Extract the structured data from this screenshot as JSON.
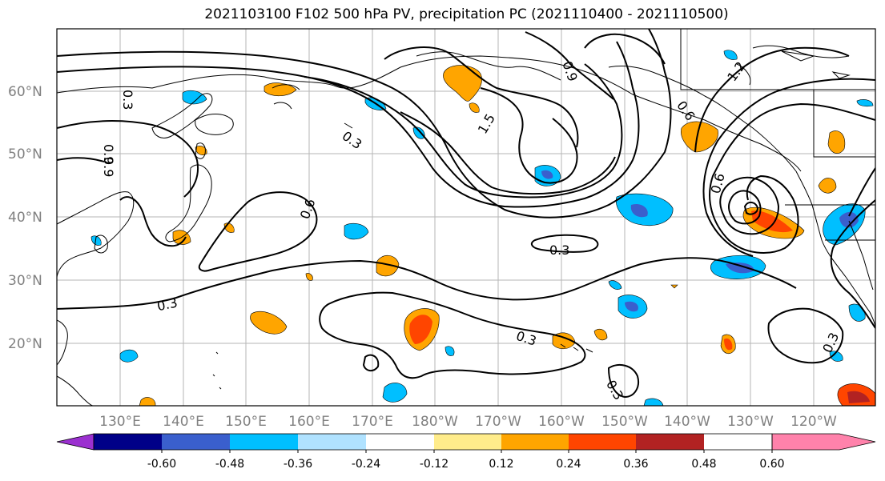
{
  "title": "2021103100 F102 500 hPa PV, precipitation PC (2021110400 - 2021110500)",
  "lat_ticks": [
    "60°N",
    "50°N",
    "40°N",
    "30°N",
    "20°N"
  ],
  "lon_ticks": [
    "130°E",
    "140°E",
    "150°E",
    "160°E",
    "170°E",
    "180°W",
    "170°W",
    "160°W",
    "150°W",
    "140°W",
    "130°W",
    "120°W"
  ],
  "contour_labels": [
    "0.3",
    "0.9",
    "0.9",
    "0.3",
    "1.5",
    "0.6",
    "0.9",
    "0.6",
    "1.2",
    "0.3",
    "0.3",
    "0.3",
    "0.3",
    "0.6",
    "0.3"
  ],
  "colorbar": {
    "colors": [
      "#9b30d0",
      "#000088",
      "#3a5fcd",
      "#00bfff",
      "#b0e2ff",
      "#ffffff",
      "#ffec8b",
      "#ffa500",
      "#ff4500",
      "#b22222",
      "#ff82ab"
    ],
    "labels": [
      "-0.60",
      "-0.48",
      "-0.36",
      "-0.24",
      "-0.12",
      "0.12",
      "0.24",
      "0.36",
      "0.48",
      "0.60"
    ]
  }
}
